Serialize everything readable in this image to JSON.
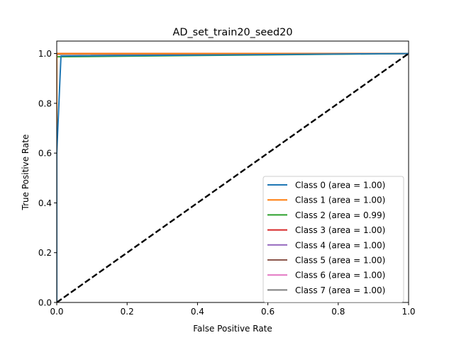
{
  "chart_data": {
    "type": "line",
    "title": "AD_set_train20_seed20",
    "xlabel": "False Positive Rate",
    "ylabel": "True Positive Rate",
    "xlim": [
      0.0,
      1.0
    ],
    "ylim": [
      0.0,
      1.05
    ],
    "x_ticks": [
      0.0,
      0.2,
      0.4,
      0.6,
      0.8,
      1.0
    ],
    "x_tick_labels": [
      "0.0",
      "0.2",
      "0.4",
      "0.6",
      "0.8",
      "1.0"
    ],
    "y_ticks": [
      0.0,
      0.2,
      0.4,
      0.6,
      0.8,
      1.0
    ],
    "y_tick_labels": [
      "0.0",
      "0.2",
      "0.4",
      "0.6",
      "0.8",
      "1.0"
    ],
    "grid": false,
    "legend_position": "lower-right",
    "diagonal": {
      "x": [
        0,
        1
      ],
      "y": [
        0,
        1
      ],
      "color": "#000000",
      "style": "dashed"
    },
    "series": [
      {
        "name": "Class 0 (area = 1.00)",
        "color": "#1f77b4",
        "x": [
          0,
          0,
          0.012,
          1
        ],
        "y": [
          0,
          0.6,
          0.99,
          1.0
        ]
      },
      {
        "name": "Class 1 (area = 1.00)",
        "color": "#ff7f0e",
        "x": [
          0,
          0,
          1
        ],
        "y": [
          0,
          1.0,
          1.0
        ]
      },
      {
        "name": "Class 2 (area = 0.99)",
        "color": "#2ca02c",
        "x": [
          0,
          0,
          1
        ],
        "y": [
          0,
          0.987,
          1.0
        ]
      },
      {
        "name": "Class 3 (area = 1.00)",
        "color": "#d62728",
        "x": [
          0,
          0,
          1
        ],
        "y": [
          0,
          1.0,
          1.0
        ]
      },
      {
        "name": "Class 4 (area = 1.00)",
        "color": "#9467bd",
        "x": [
          0,
          0,
          1
        ],
        "y": [
          0,
          1.0,
          1.0
        ]
      },
      {
        "name": "Class 5 (area = 1.00)",
        "color": "#8c564b",
        "x": [
          0,
          0,
          1
        ],
        "y": [
          0,
          1.0,
          1.0
        ]
      },
      {
        "name": "Class 6 (area = 1.00)",
        "color": "#e377c2",
        "x": [
          0,
          0,
          1
        ],
        "y": [
          0,
          1.0,
          1.0
        ]
      },
      {
        "name": "Class 7 (area = 1.00)",
        "color": "#7f7f7f",
        "x": [
          0,
          0,
          1
        ],
        "y": [
          0,
          0.997,
          1.0
        ]
      }
    ]
  }
}
